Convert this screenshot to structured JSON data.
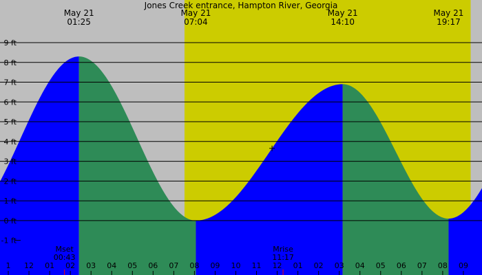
{
  "chart_data": {
    "type": "area",
    "title": "Jones Creek entrance, Hampton River, Georgia",
    "y_ticks": [
      "9 ft",
      "8 ft",
      "7 ft",
      "6 ft",
      "5 ft",
      "4 ft",
      "3 ft",
      "2 ft",
      "1 ft",
      "0 ft",
      "-1 ft"
    ],
    "y_tick_values": [
      9,
      8,
      7,
      6,
      5,
      4,
      3,
      2,
      1,
      0,
      -1
    ],
    "ylim": [
      -2.3,
      9.8
    ],
    "xlim_hours": [
      -2.4,
      20.9
    ],
    "grid": true,
    "day_shading": {
      "sunrise_hour": 6.52,
      "sunset_hour": 20.35,
      "night_color": "#bebebe",
      "day_color": "#cccc00"
    },
    "tide_events": [
      {
        "date": "May 21",
        "time": "01:25",
        "type": "high",
        "height_ft": 8.3
      },
      {
        "date": "May 21",
        "time": "07:04",
        "type": "low",
        "height_ft": 0.0
      },
      {
        "date": "May 21",
        "time": "14:10",
        "type": "high",
        "height_ft": 6.9
      },
      {
        "date": "May 21",
        "time": "19:17",
        "type": "low",
        "height_ft": 0.1
      }
    ],
    "rising_color": "#0000ff",
    "falling_color": "#2e8b57",
    "x_tick_labels": [
      "1",
      "12",
      "01",
      "02",
      "03",
      "04",
      "05",
      "06",
      "07",
      "08",
      "09",
      "10",
      "11",
      "12",
      "01",
      "02",
      "03",
      "04",
      "05",
      "06",
      "07",
      "08",
      "09"
    ],
    "x_tick_hours": [
      -2,
      -1,
      0,
      1,
      2,
      3,
      4,
      5,
      6,
      7,
      8,
      9,
      10,
      11,
      12,
      13,
      14,
      15,
      16,
      17,
      18,
      19,
      20
    ],
    "moon_events": [
      {
        "name": "Mset",
        "time": "00:43",
        "hour": 0.717
      },
      {
        "name": "Mrise",
        "time": "11:17",
        "hour": 11.283
      }
    ]
  }
}
